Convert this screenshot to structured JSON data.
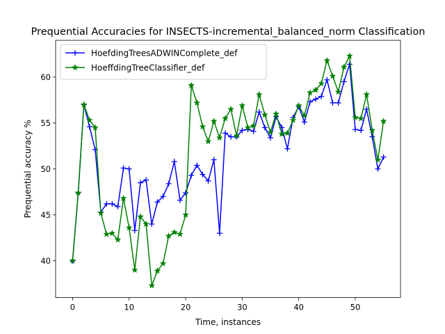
{
  "chart_data": {
    "type": "line",
    "title": "Prequential Accuracies for INSECTS-incremental_balanced_norm Classification",
    "xlabel": "Time, instances",
    "ylabel": "Prequential accuracy %",
    "xlim": [
      -3,
      58
    ],
    "ylim": [
      36,
      64
    ],
    "xticks": [
      0,
      10,
      20,
      30,
      40,
      50
    ],
    "yticks": [
      40,
      45,
      50,
      55,
      60
    ],
    "grid": false,
    "legend_position": "upper-left",
    "x": [
      0,
      1,
      2,
      3,
      4,
      5,
      6,
      7,
      8,
      9,
      10,
      11,
      12,
      13,
      14,
      15,
      16,
      17,
      18,
      19,
      20,
      21,
      22,
      23,
      24,
      25,
      26,
      27,
      28,
      29,
      30,
      31,
      32,
      33,
      34,
      35,
      36,
      37,
      38,
      39,
      40,
      41,
      42,
      43,
      44,
      45,
      46,
      47,
      48,
      49,
      50,
      51,
      52,
      53,
      54,
      55
    ],
    "series": [
      {
        "name": "HoefdingTreesADWINComplete_def",
        "color": "#0000ff",
        "marker": "plus",
        "values": [
          40.0,
          47.4,
          57.0,
          54.6,
          52.1,
          45.3,
          46.2,
          46.2,
          45.9,
          50.1,
          50.0,
          43.3,
          48.5,
          48.8,
          44.0,
          46.4,
          47.0,
          48.4,
          50.8,
          46.6,
          47.4,
          49.3,
          50.4,
          49.4,
          48.7,
          51.0,
          43.0,
          53.9,
          53.5,
          53.5,
          54.2,
          54.3,
          54.1,
          56.2,
          54.5,
          53.4,
          55.7,
          54.5,
          52.2,
          55.6,
          56.8,
          55.1,
          57.3,
          57.6,
          57.9,
          59.7,
          57.2,
          57.2,
          59.5,
          61.4,
          54.3,
          54.2,
          56.5,
          53.5,
          50.0,
          51.3
        ]
      },
      {
        "name": "HoeffdingTreeClassifier_def",
        "color": "#008000",
        "marker": "star",
        "values": [
          40.0,
          47.4,
          57.0,
          55.3,
          54.5,
          45.2,
          42.9,
          43.0,
          42.3,
          46.8,
          43.6,
          39.0,
          44.8,
          44.0,
          37.3,
          38.9,
          39.7,
          42.7,
          43.1,
          42.9,
          45.0,
          59.1,
          57.2,
          54.6,
          53.0,
          55.2,
          53.4,
          55.5,
          56.5,
          53.6,
          56.9,
          54.5,
          54.7,
          58.1,
          55.9,
          54.0,
          56.0,
          53.8,
          53.9,
          55.3,
          56.9,
          55.8,
          58.3,
          58.6,
          59.3,
          61.8,
          60.1,
          58.4,
          61.1,
          62.3,
          55.6,
          55.5,
          58.1,
          54.2,
          51.0,
          55.2
        ]
      }
    ]
  }
}
